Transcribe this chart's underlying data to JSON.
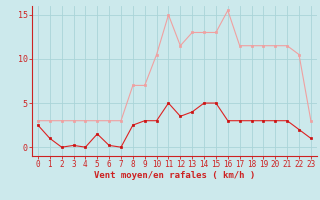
{
  "hours": [
    0,
    1,
    2,
    3,
    4,
    5,
    6,
    7,
    8,
    9,
    10,
    11,
    12,
    13,
    14,
    15,
    16,
    17,
    18,
    19,
    20,
    21,
    22,
    23
  ],
  "wind_avg": [
    2.5,
    1.0,
    0.0,
    0.2,
    0.0,
    1.5,
    0.2,
    0.0,
    2.5,
    3.0,
    3.0,
    5.0,
    3.5,
    4.0,
    5.0,
    5.0,
    3.0,
    3.0,
    3.0,
    3.0,
    3.0,
    3.0,
    2.0,
    1.0
  ],
  "wind_gust": [
    3.0,
    3.0,
    3.0,
    3.0,
    3.0,
    3.0,
    3.0,
    3.0,
    7.0,
    7.0,
    10.5,
    15.0,
    11.5,
    13.0,
    13.0,
    13.0,
    15.5,
    11.5,
    11.5,
    11.5,
    11.5,
    11.5,
    10.5,
    3.0
  ],
  "xlabel": "Vent moyen/en rafales ( km/h )",
  "ylim": [
    -1.0,
    16.0
  ],
  "yticks": [
    0,
    5,
    10,
    15
  ],
  "bg_color": "#cce9ec",
  "grid_color": "#aad4d8",
  "line_avg_color": "#dd2222",
  "line_gust_color": "#f0a0a0",
  "marker_avg_color": "#cc1111",
  "marker_gust_color": "#f0a0a0",
  "axis_color": "#cc2222",
  "tick_color": "#cc2222",
  "label_color": "#cc2222",
  "tick_fontsize": 5.5,
  "xlabel_fontsize": 6.5
}
